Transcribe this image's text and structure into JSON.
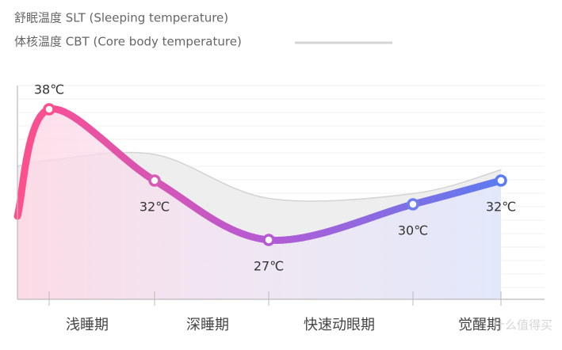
{
  "chart_data": {
    "type": "line",
    "series": [
      {
        "name": "舒眠温度 SLT (Sleeping temperature)",
        "color": "#ff4f8b",
        "color2": "#5a7cf0",
        "values": [
          29,
          38,
          32,
          27,
          30,
          32
        ],
        "value_labels": [
          null,
          "38℃",
          "32℃",
          "27℃",
          "30℃",
          "32℃"
        ]
      },
      {
        "name": "体核温度 CBT (Core body temperature)",
        "color": "#d4d4d4",
        "values": [
          33.2,
          33.7,
          34.2,
          30.5,
          30.9,
          32.9
        ]
      }
    ],
    "phases": [
      "浅睡期",
      "深睡期",
      "快速动眼期",
      "觉醒期"
    ],
    "ylim": [
      22,
      40
    ],
    "grid": true
  }
}
